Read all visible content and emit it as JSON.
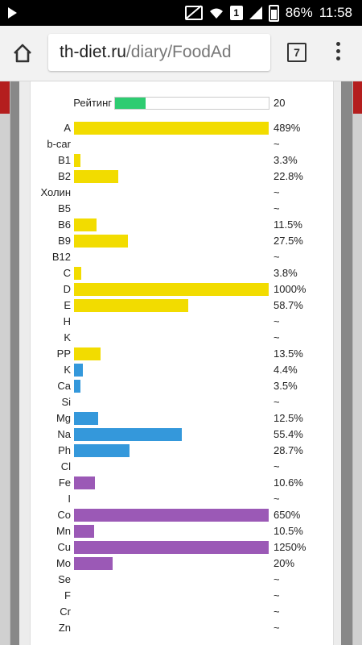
{
  "status_bar": {
    "battery": "86%",
    "time": "11:58",
    "sim_label": "1"
  },
  "browser": {
    "url_host": "th-diet.ru",
    "url_path": "/diary/FoodAd",
    "tab_count": "7"
  },
  "rating": {
    "label": "Рейтинг",
    "value": "20",
    "level_percent": 20,
    "color": "#2ecc71"
  },
  "colors": {
    "vitamins": "#f2dc00",
    "macro_minerals": "#3498db",
    "trace_minerals": "#9b59b6"
  },
  "nutrients": [
    {
      "label": "A",
      "value": "489%",
      "percent": 489,
      "group": "vitamins"
    },
    {
      "label": "b-car",
      "value": "~",
      "percent": null,
      "group": "vitamins"
    },
    {
      "label": "B1",
      "value": "3.3%",
      "percent": 3.3,
      "group": "vitamins"
    },
    {
      "label": "B2",
      "value": "22.8%",
      "percent": 22.8,
      "group": "vitamins"
    },
    {
      "label": "Холин",
      "value": "~",
      "percent": null,
      "group": "vitamins"
    },
    {
      "label": "B5",
      "value": "~",
      "percent": null,
      "group": "vitamins"
    },
    {
      "label": "B6",
      "value": "11.5%",
      "percent": 11.5,
      "group": "vitamins"
    },
    {
      "label": "B9",
      "value": "27.5%",
      "percent": 27.5,
      "group": "vitamins"
    },
    {
      "label": "B12",
      "value": "~",
      "percent": null,
      "group": "vitamins"
    },
    {
      "label": "C",
      "value": "3.8%",
      "percent": 3.8,
      "group": "vitamins"
    },
    {
      "label": "D",
      "value": "1000%",
      "percent": 1000,
      "group": "vitamins"
    },
    {
      "label": "E",
      "value": "58.7%",
      "percent": 58.7,
      "group": "vitamins"
    },
    {
      "label": "H",
      "value": "~",
      "percent": null,
      "group": "vitamins"
    },
    {
      "label": "K",
      "value": "~",
      "percent": null,
      "group": "vitamins"
    },
    {
      "label": "PP",
      "value": "13.5%",
      "percent": 13.5,
      "group": "vitamins"
    },
    {
      "label": "K",
      "value": "4.4%",
      "percent": 4.4,
      "group": "macro_minerals"
    },
    {
      "label": "Ca",
      "value": "3.5%",
      "percent": 3.5,
      "group": "macro_minerals"
    },
    {
      "label": "Si",
      "value": "~",
      "percent": null,
      "group": "macro_minerals"
    },
    {
      "label": "Mg",
      "value": "12.5%",
      "percent": 12.5,
      "group": "macro_minerals"
    },
    {
      "label": "Na",
      "value": "55.4%",
      "percent": 55.4,
      "group": "macro_minerals"
    },
    {
      "label": "Ph",
      "value": "28.7%",
      "percent": 28.7,
      "group": "macro_minerals"
    },
    {
      "label": "Cl",
      "value": "~",
      "percent": null,
      "group": "macro_minerals"
    },
    {
      "label": "Fe",
      "value": "10.6%",
      "percent": 10.6,
      "group": "trace_minerals"
    },
    {
      "label": "I",
      "value": "~",
      "percent": null,
      "group": "trace_minerals"
    },
    {
      "label": "Co",
      "value": "650%",
      "percent": 650,
      "group": "trace_minerals"
    },
    {
      "label": "Mn",
      "value": "10.5%",
      "percent": 10.5,
      "group": "trace_minerals"
    },
    {
      "label": "Cu",
      "value": "1250%",
      "percent": 1250,
      "group": "trace_minerals"
    },
    {
      "label": "Mo",
      "value": "20%",
      "percent": 20,
      "group": "trace_minerals"
    },
    {
      "label": "Se",
      "value": "~",
      "percent": null,
      "group": "trace_minerals"
    },
    {
      "label": "F",
      "value": "~",
      "percent": null,
      "group": "trace_minerals"
    },
    {
      "label": "Cr",
      "value": "~",
      "percent": null,
      "group": "trace_minerals"
    },
    {
      "label": "Zn",
      "value": "~",
      "percent": null,
      "group": "trace_minerals"
    }
  ]
}
